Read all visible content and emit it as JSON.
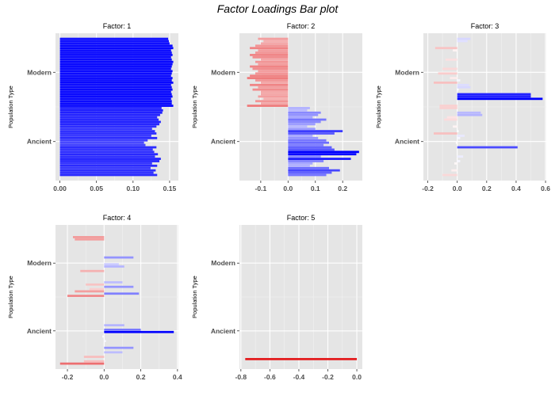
{
  "title": "Factor Loadings Bar plot",
  "colors": {
    "negative": "#e31a1c",
    "positive": "#0000ff",
    "mid": "#ffffff",
    "panel_bg": "#e5e5e5",
    "grid": "#ffffff"
  },
  "chart_data": [
    {
      "type": "bar",
      "title": "Factor: 1",
      "ylabel": "Population Type",
      "xlabel": "",
      "groups": [
        "Ancient",
        "Modern"
      ],
      "xlim": [
        -0.006,
        0.162
      ],
      "xticks": [
        0.0,
        0.05,
        0.1,
        0.15
      ],
      "xtick_labels": [
        "0.00",
        "0.05",
        "0.10",
        "0.15"
      ],
      "limit": 0.16,
      "values": [
        0.133,
        0.128,
        0.131,
        0.124,
        0.133,
        0.126,
        0.136,
        0.138,
        0.13,
        0.134,
        0.129,
        0.127,
        0.132,
        0.117,
        0.115,
        0.12,
        0.133,
        0.125,
        0.132,
        0.13,
        0.126,
        0.132,
        0.136,
        0.138,
        0.135,
        0.133,
        0.137,
        0.14,
        0.141,
        0.139,
        0.155,
        0.153,
        0.153,
        0.152,
        0.154,
        0.153,
        0.152,
        0.154,
        0.153,
        0.152,
        0.155,
        0.153,
        0.154,
        0.152,
        0.153,
        0.154,
        0.152,
        0.153,
        0.154,
        0.155,
        0.153,
        0.152,
        0.154,
        0.153,
        0.152,
        0.155,
        0.154,
        0.15,
        0.149,
        0.148
      ]
    },
    {
      "type": "bar",
      "title": "Factor: 2",
      "ylabel": "Population Type",
      "xlabel": "",
      "groups": [
        "Ancient",
        "Modern"
      ],
      "xlim": [
        -0.178,
        0.272
      ],
      "xticks": [
        -0.1,
        0.0,
        0.1,
        0.2
      ],
      "xtick_labels": [
        "-0.1",
        "0.0",
        "0.1",
        "0.2"
      ],
      "limit": 0.26,
      "values": [
        0.14,
        0.16,
        0.19,
        0.15,
        0.08,
        0.09,
        0.13,
        0.23,
        0.12,
        0.25,
        0.26,
        0.17,
        0.16,
        0.13,
        0.15,
        0.14,
        0.11,
        0.09,
        0.17,
        0.2,
        0.1,
        0.07,
        0.1,
        0.12,
        0.14,
        0.09,
        0.11,
        0.12,
        0.07,
        0.08,
        -0.15,
        -0.1,
        -0.12,
        -0.09,
        -0.11,
        -0.1,
        -0.1,
        -0.13,
        -0.11,
        -0.14,
        -0.1,
        -0.12,
        -0.15,
        -0.14,
        -0.12,
        -0.11,
        -0.13,
        -0.14,
        -0.11,
        -0.12,
        -0.1,
        -0.13,
        -0.14,
        -0.12,
        -0.11,
        -0.14,
        -0.12,
        -0.1,
        -0.09,
        -0.11
      ]
    },
    {
      "type": "bar",
      "title": "Factor: 3",
      "ylabel": "Population Type",
      "xlabel": "",
      "groups": [
        "Ancient",
        "Modern"
      ],
      "xlim": [
        -0.23,
        0.605
      ],
      "xticks": [
        -0.2,
        0.0,
        0.2,
        0.4,
        0.6
      ],
      "xtick_labels": [
        "-0.2",
        "0.0",
        "0.2",
        "0.4",
        "0.6"
      ],
      "limit": 0.58,
      "values": [
        -0.1,
        0.0,
        -0.04,
        0.0,
        0.0,
        -0.02,
        0.02,
        0.0,
        0.04,
        0.0,
        0.0,
        0.0,
        0.41,
        0.0,
        -0.01,
        0.0,
        0.02,
        0.05,
        -0.16,
        0.01,
        0.0,
        -0.03,
        0.0,
        0.0,
        -0.09,
        -0.07,
        0.17,
        0.16,
        0.0,
        -0.12,
        -0.12,
        0.0,
        0.0,
        0.58,
        0.5,
        0.5,
        0.0,
        0.01,
        0.09,
        0.08,
        -0.16,
        0.02,
        -0.05,
        0.0,
        -0.13,
        0.0,
        -0.1,
        0.0,
        0.0,
        0.0,
        -0.08,
        0.0,
        0.0,
        0.0,
        -0.03,
        -0.15,
        0.0,
        0.0,
        0.07,
        0.09
      ]
    },
    {
      "type": "bar",
      "title": "Factor: 4",
      "ylabel": "Population Type",
      "xlabel": "",
      "groups": [
        "Ancient",
        "Modern"
      ],
      "xlim": [
        -0.265,
        0.405
      ],
      "xticks": [
        -0.2,
        0.0,
        0.2,
        0.4
      ],
      "xtick_labels": [
        "-0.2",
        "0.0",
        "0.2",
        "0.4"
      ],
      "limit": 0.38,
      "values": [
        -0.24,
        -0.11,
        0.0,
        -0.11,
        0.0,
        0.1,
        0.0,
        0.16,
        0.0,
        0.0,
        0.01,
        0.0,
        -0.01,
        0.0,
        0.38,
        0.2,
        0.0,
        0.11,
        0.0,
        0.0,
        0.0,
        0.0,
        0.0,
        0.0,
        0.0,
        0.0,
        0.0,
        0.0,
        0.0,
        0.0,
        -0.2,
        0.19,
        -0.16,
        -0.08,
        0.16,
        -0.1,
        0.1,
        0.0,
        0.0,
        0.0,
        0.0,
        -0.13,
        0.0,
        0.11,
        0.08,
        0.0,
        0.0,
        0.16,
        0.0,
        0.0,
        0.0,
        0.0,
        0.0,
        0.0,
        0.0,
        -0.16,
        -0.17,
        0.0,
        0.0,
        0.0
      ]
    },
    {
      "type": "bar",
      "title": "Factor: 5",
      "ylabel": "Population Type",
      "xlabel": "",
      "groups": [
        "Ancient",
        "Modern"
      ],
      "xlim": [
        -0.81,
        0.038
      ],
      "xticks": [
        -0.8,
        -0.6,
        -0.4,
        -0.2,
        0.0
      ],
      "xtick_labels": [
        "-0.8",
        "-0.6",
        "-0.4",
        "-0.2",
        "0.0"
      ],
      "limit": 0.77,
      "values": [
        0.0,
        0.0,
        -0.77,
        0,
        0,
        0,
        0,
        0,
        0,
        0,
        0,
        0,
        0,
        0,
        0,
        0,
        0,
        0,
        0,
        0,
        0,
        0,
        0,
        0,
        0,
        0,
        0,
        0,
        0,
        0,
        0,
        0,
        0,
        0,
        0,
        0,
        0,
        0,
        0,
        0,
        0,
        0,
        0,
        0,
        0,
        0,
        0,
        0,
        0,
        0,
        0,
        0,
        0,
        0,
        0,
        0,
        0,
        0,
        0,
        0
      ]
    }
  ]
}
